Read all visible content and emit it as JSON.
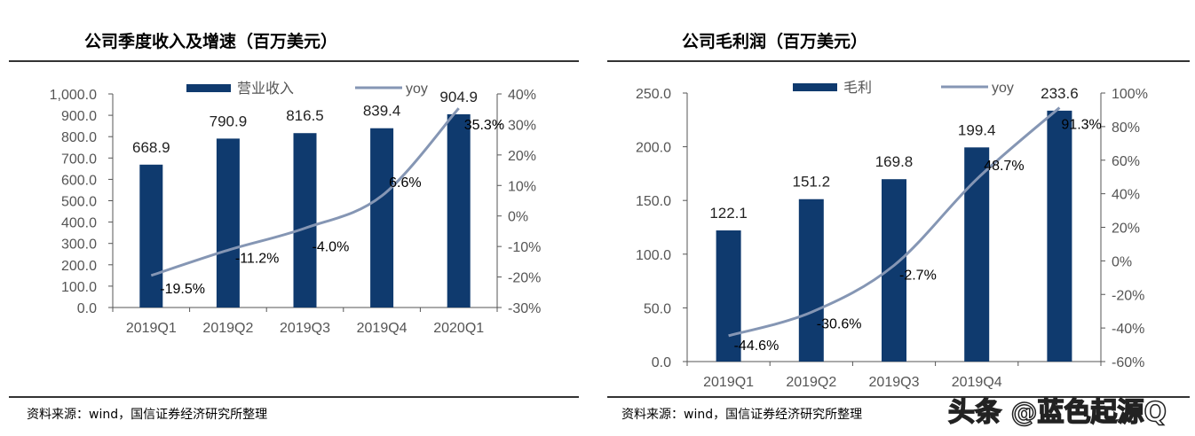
{
  "colors": {
    "bar": "#0f3a6e",
    "line": "#8596b4",
    "axis": "#555"
  },
  "watermark": "头条 @蓝色起源Q",
  "chart_data": [
    {
      "type": "bar+line",
      "title": "公司季度收入及增速（百万美元）",
      "source": "资料来源：wind，国信证券经济研究所整理",
      "categories": [
        "2019Q1",
        "2019Q2",
        "2019Q3",
        "2019Q4",
        "2020Q1"
      ],
      "series": [
        {
          "name": "营业收入",
          "type": "bar",
          "axis": "left",
          "values": [
            668.9,
            790.9,
            816.5,
            839.4,
            904.9
          ],
          "labels": [
            "668.9",
            "790.9",
            "816.5",
            "839.4",
            "904.9"
          ]
        },
        {
          "name": "yoy",
          "type": "line",
          "axis": "right",
          "values": [
            -19.5,
            -11.2,
            -4.0,
            6.6,
            35.3
          ],
          "labels": [
            "-19.5%",
            "-11.2%",
            "-4.0%",
            "6.6%",
            "35.3%"
          ]
        }
      ],
      "ylim": [
        0,
        1000
      ],
      "yticks": [
        "0.0",
        "100.0",
        "200.0",
        "300.0",
        "400.0",
        "500.0",
        "600.0",
        "700.0",
        "800.0",
        "900.0",
        "1,000.0"
      ],
      "y2lim": [
        -30,
        40
      ],
      "y2ticks": [
        "-30%",
        "-20%",
        "-10%",
        "0%",
        "10%",
        "20%",
        "30%",
        "40%"
      ],
      "legend": "top"
    },
    {
      "type": "bar+line",
      "title": "公司毛利润（百万美元）",
      "source": "资料来源：wind，国信证券经济研究所整理",
      "categories": [
        "2019Q1",
        "2019Q2",
        "2019Q3",
        "2019Q4",
        ""
      ],
      "series": [
        {
          "name": "毛利",
          "type": "bar",
          "axis": "left",
          "values": [
            122.1,
            151.2,
            169.8,
            199.4,
            233.6
          ],
          "labels": [
            "122.1",
            "151.2",
            "169.8",
            "199.4",
            "233.6"
          ]
        },
        {
          "name": "yoy",
          "type": "line",
          "axis": "right",
          "values": [
            -44.6,
            -30.6,
            -2.7,
            48.7,
            91.3
          ],
          "labels": [
            "-44.6%",
            "-30.6%",
            "-2.7%",
            "48.7%",
            "91.3%"
          ]
        }
      ],
      "ylim": [
        0,
        250
      ],
      "yticks": [
        "0.0",
        "50.0",
        "100.0",
        "150.0",
        "200.0",
        "250.0"
      ],
      "y2lim": [
        -60,
        100
      ],
      "y2ticks": [
        "-60%",
        "-40%",
        "-20%",
        "0%",
        "20%",
        "40%",
        "60%",
        "80%",
        "100%"
      ],
      "legend": "top"
    }
  ]
}
